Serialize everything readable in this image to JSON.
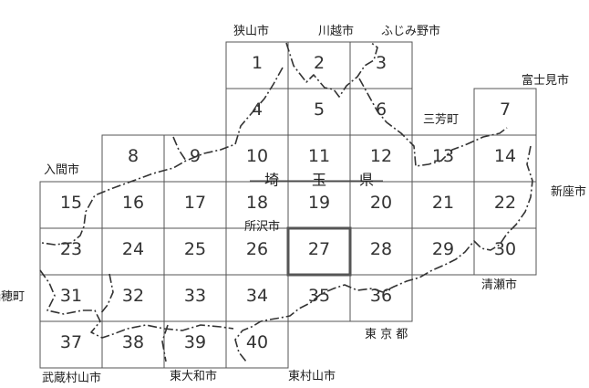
{
  "cells": [
    {
      "label": "1",
      "col": 3,
      "row": 0
    },
    {
      "label": "2",
      "col": 4,
      "row": 0
    },
    {
      "label": "3",
      "col": 5,
      "row": 0
    },
    {
      "label": "4",
      "col": 3,
      "row": 1
    },
    {
      "label": "5",
      "col": 4,
      "row": 1
    },
    {
      "label": "6",
      "col": 5,
      "row": 1
    },
    {
      "label": "7",
      "col": 7,
      "row": 1
    },
    {
      "label": "8",
      "col": 1,
      "row": 2
    },
    {
      "label": "9",
      "col": 2,
      "row": 2
    },
    {
      "label": "10",
      "col": 3,
      "row": 2
    },
    {
      "label": "11",
      "col": 4,
      "row": 2
    },
    {
      "label": "12",
      "col": 5,
      "row": 2
    },
    {
      "label": "13",
      "col": 6,
      "row": 2
    },
    {
      "label": "14",
      "col": 7,
      "row": 2
    },
    {
      "label": "15",
      "col": 0,
      "row": 3
    },
    {
      "label": "16",
      "col": 1,
      "row": 3
    },
    {
      "label": "17",
      "col": 2,
      "row": 3
    },
    {
      "label": "18",
      "col": 3,
      "row": 3
    },
    {
      "label": "19",
      "col": 4,
      "row": 3
    },
    {
      "label": "20",
      "col": 5,
      "row": 3
    },
    {
      "label": "21",
      "col": 6,
      "row": 3
    },
    {
      "label": "22",
      "col": 7,
      "row": 3
    },
    {
      "label": "23",
      "col": 0,
      "row": 4
    },
    {
      "label": "24",
      "col": 1,
      "row": 4
    },
    {
      "label": "25",
      "col": 2,
      "row": 4
    },
    {
      "label": "26",
      "col": 3,
      "row": 4
    },
    {
      "label": "27",
      "col": 4,
      "row": 4,
      "selected": true
    },
    {
      "label": "28",
      "col": 5,
      "row": 4
    },
    {
      "label": "29",
      "col": 6,
      "row": 4
    },
    {
      "label": "30",
      "col": 7,
      "row": 4
    },
    {
      "label": "31",
      "col": 0,
      "row": 5
    },
    {
      "label": "32",
      "col": 1,
      "row": 5
    },
    {
      "label": "33",
      "col": 2,
      "row": 5
    },
    {
      "label": "34",
      "col": 3,
      "row": 5
    },
    {
      "label": "35",
      "col": 4,
      "row": 5
    },
    {
      "label": "36",
      "col": 5,
      "row": 5
    },
    {
      "label": "37",
      "col": 0,
      "row": 6
    },
    {
      "label": "38",
      "col": 1,
      "row": 6
    },
    {
      "label": "39",
      "col": 2,
      "row": 6
    },
    {
      "label": "40",
      "col": 3,
      "row": 6
    }
  ],
  "places": {
    "sayama": "狭山市",
    "kawagoe": "川越市",
    "fujimino": "ふじみ野市",
    "fujimi": "富士見市",
    "miyoshi": "三芳町",
    "iruma": "入間市",
    "niiza": "新座市",
    "tokorozawa": "所沢市",
    "mizuho": "瑞穂町",
    "kiyose": "清瀬市",
    "tokyo": "東 京 都",
    "musashimurayama": "武蔵村山市",
    "higashiyamato": "東大和市",
    "higashimurayama": "東村山市"
  },
  "prefecture": {
    "chars": [
      "埼",
      "玉",
      "県"
    ]
  },
  "colors": {
    "grid": "#555555",
    "text": "#222222",
    "background": "#ffffff"
  }
}
